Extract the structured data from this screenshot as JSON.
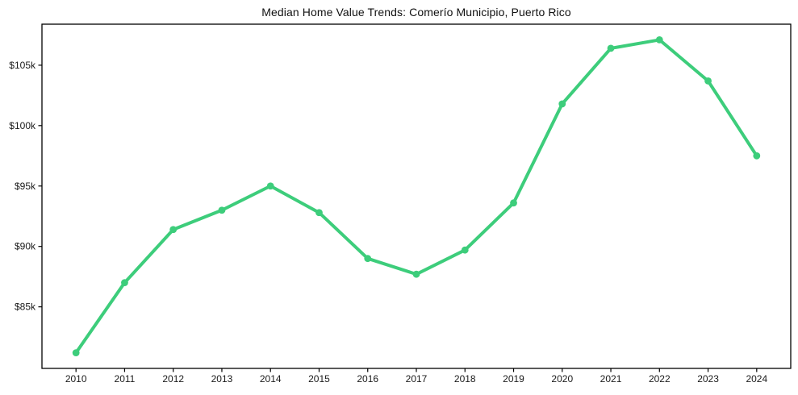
{
  "window": {
    "background_color": "#ffffff",
    "axes_color": "#000000",
    "text_color": "#1a1a1a"
  },
  "chart_data": {
    "type": "line",
    "title": "Median Home Value Trends: Comerío Municipio, Puerto Rico",
    "xlabel": "",
    "ylabel": "",
    "grid": false,
    "legend": null,
    "line_color": "#3dcd7b",
    "marker": "circle",
    "x": [
      2010,
      2011,
      2012,
      2013,
      2014,
      2015,
      2016,
      2017,
      2018,
      2019,
      2020,
      2021,
      2022,
      2023,
      2024
    ],
    "values": [
      81200,
      87000,
      91400,
      93000,
      95000,
      92800,
      89000,
      87700,
      89700,
      93600,
      101800,
      106400,
      107100,
      103700,
      97500
    ],
    "xlim": [
      2009.3,
      2024.7
    ],
    "ylim": [
      79905,
      108395
    ],
    "xticks": [
      {
        "value": 2010,
        "label": "2010"
      },
      {
        "value": 2011,
        "label": "2011"
      },
      {
        "value": 2012,
        "label": "2012"
      },
      {
        "value": 2013,
        "label": "2013"
      },
      {
        "value": 2014,
        "label": "2014"
      },
      {
        "value": 2015,
        "label": "2015"
      },
      {
        "value": 2016,
        "label": "2016"
      },
      {
        "value": 2017,
        "label": "2017"
      },
      {
        "value": 2018,
        "label": "2018"
      },
      {
        "value": 2019,
        "label": "2019"
      },
      {
        "value": 2020,
        "label": "2020"
      },
      {
        "value": 2021,
        "label": "2021"
      },
      {
        "value": 2022,
        "label": "2022"
      },
      {
        "value": 2023,
        "label": "2023"
      },
      {
        "value": 2024,
        "label": "2024"
      }
    ],
    "yticks": [
      {
        "value": 85000,
        "label": "$85k"
      },
      {
        "value": 90000,
        "label": "$90k"
      },
      {
        "value": 95000,
        "label": "$95k"
      },
      {
        "value": 100000,
        "label": "$100k"
      },
      {
        "value": 105000,
        "label": "$105k"
      }
    ]
  }
}
